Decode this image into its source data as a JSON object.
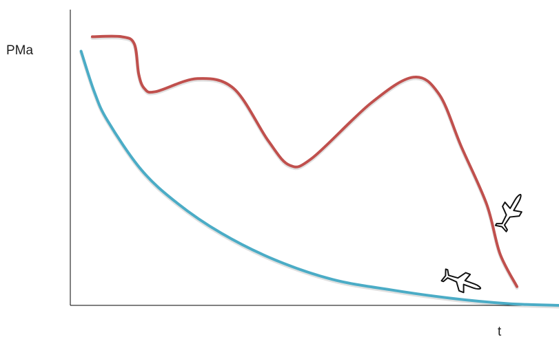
{
  "chart_data": {
    "type": "line",
    "ylabel": "PMa",
    "xlabel": "t",
    "xlim": [
      0,
      100
    ],
    "ylim": [
      0,
      100
    ],
    "grid": false,
    "ticks": false,
    "series": [
      {
        "color": "#c0504d",
        "points": [
          [
            4.5,
            93
          ],
          [
            10.5,
            93
          ],
          [
            13.1,
            90.5
          ],
          [
            14.0,
            80
          ],
          [
            15.2,
            75
          ],
          [
            17.5,
            74
          ],
          [
            26,
            78.5
          ],
          [
            33.5,
            75
          ],
          [
            40.5,
            57
          ],
          [
            44.9,
            48.5
          ],
          [
            49.5,
            51
          ],
          [
            61.5,
            70
          ],
          [
            70.2,
            79
          ],
          [
            75.5,
            73
          ],
          [
            80,
            55
          ],
          [
            85.2,
            35
          ],
          [
            87.9,
            18
          ],
          [
            91.4,
            6.5
          ]
        ],
        "markers": [
          {
            "at": [
              90.3,
              33
            ],
            "icon": "airplane-icon",
            "rotation": -60
          }
        ]
      },
      {
        "color": "#4bacc6",
        "points": [
          [
            2.2,
            88
          ],
          [
            4.9,
            74
          ],
          [
            7.6,
            64
          ],
          [
            14.5,
            47
          ],
          [
            21.8,
            35.5
          ],
          [
            30.9,
            25
          ],
          [
            41.8,
            15.8
          ],
          [
            53.6,
            9
          ],
          [
            65.5,
            5.4
          ],
          [
            77.7,
            2.5
          ],
          [
            89.6,
            0.6
          ],
          [
            100,
            0
          ]
        ],
        "markers": [
          {
            "at": [
              80.5,
              8
            ],
            "icon": "airplane-icon",
            "rotation": 20
          }
        ]
      }
    ]
  }
}
